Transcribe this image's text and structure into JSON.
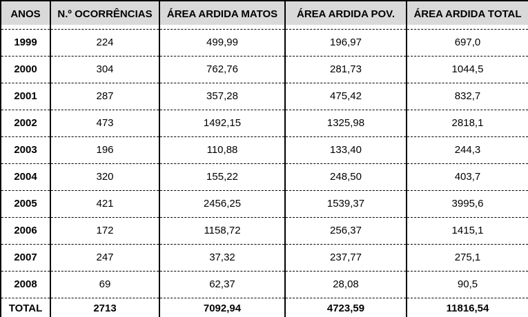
{
  "chart_data": {
    "type": "table",
    "columns": [
      "ANOS",
      "N.º OCORRÊNCIAS",
      "ÁREA ARDIDA MATOS",
      "ÁREA ARDIDA POV.",
      "ÁREA ARDIDA TOTAL"
    ],
    "rows": [
      {
        "anos": "1999",
        "ocorrencias": "224",
        "area_ardida_matos": "499,99",
        "area_ardida_pov": "196,97",
        "area_ardida_total": "697,0"
      },
      {
        "anos": "2000",
        "ocorrencias": "304",
        "area_ardida_matos": "762,76",
        "area_ardida_pov": "281,73",
        "area_ardida_total": "1044,5"
      },
      {
        "anos": "2001",
        "ocorrencias": "287",
        "area_ardida_matos": "357,28",
        "area_ardida_pov": "475,42",
        "area_ardida_total": "832,7"
      },
      {
        "anos": "2002",
        "ocorrencias": "473",
        "area_ardida_matos": "1492,15",
        "area_ardida_pov": "1325,98",
        "area_ardida_total": "2818,1"
      },
      {
        "anos": "2003",
        "ocorrencias": "196",
        "area_ardida_matos": "110,88",
        "area_ardida_pov": "133,40",
        "area_ardida_total": "244,3"
      },
      {
        "anos": "2004",
        "ocorrencias": "320",
        "area_ardida_matos": "155,22",
        "area_ardida_pov": "248,50",
        "area_ardida_total": "403,7"
      },
      {
        "anos": "2005",
        "ocorrencias": "421",
        "area_ardida_matos": "2456,25",
        "area_ardida_pov": "1539,37",
        "area_ardida_total": "3995,6"
      },
      {
        "anos": "2006",
        "ocorrencias": "172",
        "area_ardida_matos": "1158,72",
        "area_ardida_pov": "256,37",
        "area_ardida_total": "1415,1"
      },
      {
        "anos": "2007",
        "ocorrencias": "247",
        "area_ardida_matos": "37,32",
        "area_ardida_pov": "237,77",
        "area_ardida_total": "275,1"
      },
      {
        "anos": "2008",
        "ocorrencias": "69",
        "area_ardida_matos": "62,37",
        "area_ardida_pov": "28,08",
        "area_ardida_total": "90,5"
      }
    ],
    "total_row": {
      "anos": "TOTAL",
      "ocorrencias": "2713",
      "area_ardida_matos": "7092,94",
      "area_ardida_pov": "4723,59",
      "area_ardida_total": "11816,54"
    }
  },
  "colors": {
    "header_background": "#d9d9d9",
    "border": "#000000",
    "text": "#000000"
  }
}
